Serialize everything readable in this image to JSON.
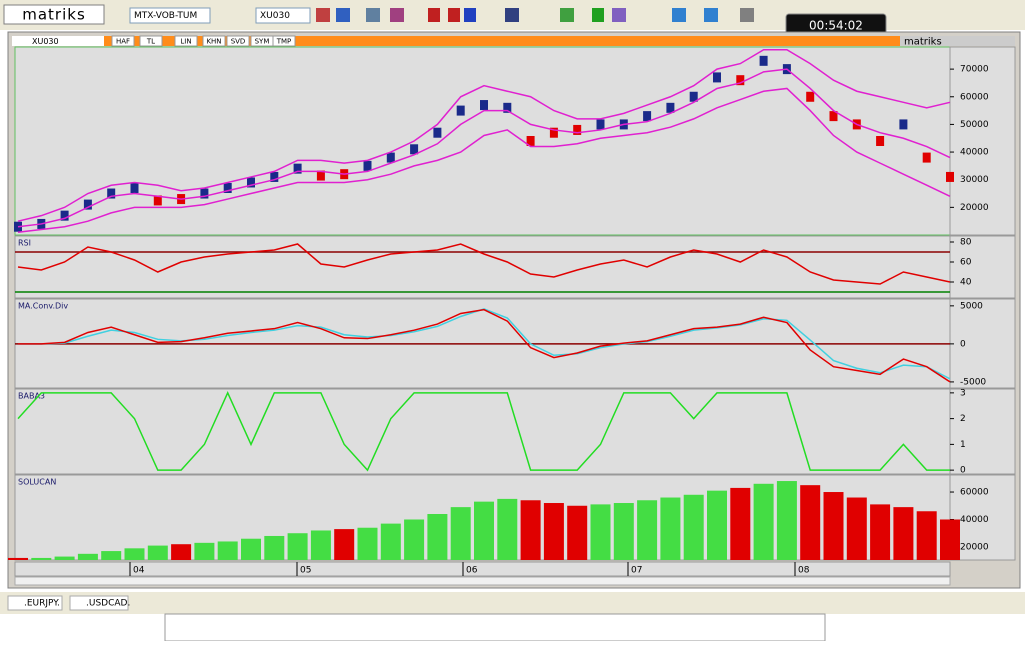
{
  "toolbar": {
    "logo": "matriks",
    "symbol_list": "MTX-VOB-TUM",
    "symbol": "XU030",
    "clock": "00:54:02"
  },
  "window": {
    "tab": "XU030",
    "buttons": [
      "HAF",
      "TL",
      "LIN",
      "KHN",
      "SVD",
      "SYM",
      "TMP"
    ],
    "brand": "matriks"
  },
  "x_axis": {
    "labels": [
      "04",
      "05",
      "06",
      "07",
      "08"
    ]
  },
  "chart_data": [
    {
      "type": "price",
      "ylim": [
        10000,
        78000
      ],
      "yticks": [
        70000,
        60000,
        50000,
        40000,
        30000,
        20000
      ],
      "series": [
        {
          "color": "#1a2a8a",
          "values": [
            13000,
            14000,
            17000,
            21000,
            25000,
            27000,
            22500,
            23000,
            25000,
            27000,
            29000,
            31000,
            34000,
            31500,
            32000,
            35000,
            38000,
            41000,
            47000,
            55000,
            57000,
            56000,
            44000,
            47000,
            48000,
            50000,
            50000,
            53000,
            56000,
            60000,
            67000,
            66000,
            73000,
            70000,
            60000,
            53000,
            50000,
            44000,
            50000,
            38000,
            31000
          ],
          "bar_colors": [
            "#1a2a8a",
            "#1a2a8a",
            "#1a2a8a",
            "#1a2a8a",
            "#1a2a8a",
            "#1a2a8a",
            "#e00000",
            "#e00000",
            "#1a2a8a",
            "#1a2a8a",
            "#1a2a8a",
            "#1a2a8a",
            "#1a2a8a",
            "#e00000",
            "#e00000",
            "#1a2a8a",
            "#1a2a8a",
            "#1a2a8a",
            "#1a2a8a",
            "#1a2a8a",
            "#1a2a8a",
            "#1a2a8a",
            "#e00000",
            "#e00000",
            "#e00000",
            "#1a2a8a",
            "#1a2a8a",
            "#1a2a8a",
            "#1a2a8a",
            "#1a2a8a",
            "#1a2a8a",
            "#e00000",
            "#1a2a8a",
            "#1a2a8a",
            "#e00000",
            "#e00000",
            "#e00000",
            "#e00000",
            "#1a2a8a",
            "#e00000",
            "#e00000"
          ]
        },
        {
          "color": "#e020d0",
          "values": [
            15000,
            17000,
            20000,
            25000,
            28000,
            29000,
            28000,
            26000,
            27000,
            29000,
            31000,
            33000,
            37000,
            37000,
            36000,
            37000,
            40000,
            44000,
            50000,
            60000,
            64000,
            62000,
            60000,
            55000,
            52000,
            52000,
            54000,
            57000,
            60000,
            64000,
            70000,
            72000,
            77000,
            77000,
            72000,
            66000,
            62000,
            60000,
            58000,
            56000,
            58000
          ]
        },
        {
          "color": "#e020d0",
          "values": [
            13000,
            14000,
            16000,
            20000,
            24000,
            25000,
            24000,
            23000,
            24000,
            26000,
            28000,
            30000,
            33000,
            33000,
            32000,
            33000,
            36000,
            39000,
            43000,
            50000,
            55000,
            55000,
            50000,
            48000,
            47000,
            48000,
            50000,
            51000,
            54000,
            58000,
            63000,
            65000,
            69000,
            70000,
            63000,
            55000,
            50000,
            47000,
            45000,
            42000,
            38000
          ]
        },
        {
          "color": "#e020d0",
          "values": [
            11000,
            12000,
            13000,
            15000,
            18000,
            20000,
            20000,
            20000,
            21000,
            23000,
            25000,
            27000,
            29000,
            29000,
            29000,
            30000,
            32000,
            35000,
            37000,
            40000,
            46000,
            48000,
            42000,
            42000,
            43000,
            45000,
            46000,
            47000,
            49000,
            52000,
            56000,
            59000,
            62000,
            63000,
            55000,
            46000,
            40000,
            36000,
            32000,
            28000,
            24000
          ]
        }
      ]
    },
    {
      "type": "line",
      "title": "RSI",
      "ylim": [
        24,
        86
      ],
      "yticks": [
        80,
        60,
        40
      ],
      "levels": [
        {
          "value": 70,
          "color": "#8b0000"
        },
        {
          "value": 30,
          "color": "#008000"
        }
      ],
      "series": [
        {
          "color": "#e00000",
          "values": [
            55,
            52,
            60,
            75,
            70,
            62,
            50,
            60,
            65,
            68,
            70,
            72,
            78,
            58,
            55,
            62,
            68,
            70,
            72,
            78,
            68,
            60,
            48,
            45,
            52,
            58,
            62,
            55,
            65,
            72,
            68,
            60,
            72,
            65,
            50,
            42,
            40,
            38,
            50,
            45,
            40
          ]
        }
      ]
    },
    {
      "type": "line",
      "title": "MA.Conv.Div",
      "ylim": [
        -5800,
        5900
      ],
      "yticks": [
        5000,
        0,
        -5000
      ],
      "levels": [
        {
          "value": 0,
          "color": "#8b0000"
        }
      ],
      "series": [
        {
          "color": "#40d0e0",
          "values": [
            0,
            0,
            100,
            1000,
            1800,
            1500,
            600,
            400,
            600,
            1100,
            1500,
            1800,
            2400,
            2200,
            1200,
            900,
            1100,
            1600,
            2300,
            3600,
            4600,
            3400,
            0,
            -1500,
            -1300,
            -500,
            0,
            300,
            1000,
            1800,
            2100,
            2500,
            3300,
            3100,
            500,
            -2200,
            -3200,
            -3800,
            -2800,
            -3000,
            -4600
          ]
        },
        {
          "color": "#e00000",
          "values": [
            0,
            0,
            200,
            1500,
            2200,
            1200,
            200,
            300,
            800,
            1400,
            1700,
            2000,
            2800,
            2000,
            800,
            700,
            1200,
            1800,
            2600,
            4000,
            4500,
            3000,
            -500,
            -1800,
            -1200,
            -300,
            100,
            400,
            1200,
            2000,
            2200,
            2600,
            3500,
            2800,
            -800,
            -3000,
            -3500,
            -4000,
            -2000,
            -3000,
            -5000
          ]
        }
      ]
    },
    {
      "type": "line",
      "title": "BABA3",
      "ylim": [
        -0.15,
        3.15
      ],
      "yticks": [
        3,
        2,
        1,
        0
      ],
      "series": [
        {
          "color": "#22dd22",
          "values": [
            2,
            3,
            3,
            3,
            3,
            2,
            0,
            0,
            1,
            3,
            1,
            3,
            3,
            3,
            1,
            0,
            2,
            3,
            3,
            3,
            3,
            3,
            0,
            0,
            0,
            1,
            3,
            3,
            3,
            2,
            3,
            3,
            3,
            3,
            0,
            0,
            0,
            0,
            1,
            0,
            0
          ]
        }
      ]
    },
    {
      "type": "bar",
      "title": "SOLUCAN",
      "ylim": [
        10500,
        72400
      ],
      "yticks": [
        60000,
        40000,
        20000
      ],
      "series": [
        {
          "values": [
            12000,
            12000,
            13000,
            15000,
            17000,
            19000,
            21000,
            22000,
            23000,
            24000,
            26000,
            28000,
            30000,
            32000,
            33000,
            34000,
            37000,
            40000,
            44000,
            49000,
            53000,
            55000,
            54000,
            52000,
            50000,
            51000,
            52000,
            54000,
            56000,
            58000,
            61000,
            63000,
            66000,
            68000,
            65000,
            60000,
            56000,
            51000,
            49000,
            46000,
            40000
          ],
          "bar_colors": [
            "#e00000",
            "#44dd44",
            "#44dd44",
            "#44dd44",
            "#44dd44",
            "#44dd44",
            "#44dd44",
            "#e00000",
            "#44dd44",
            "#44dd44",
            "#44dd44",
            "#44dd44",
            "#44dd44",
            "#44dd44",
            "#e00000",
            "#44dd44",
            "#44dd44",
            "#44dd44",
            "#44dd44",
            "#44dd44",
            "#44dd44",
            "#44dd44",
            "#e00000",
            "#e00000",
            "#e00000",
            "#44dd44",
            "#44dd44",
            "#44dd44",
            "#44dd44",
            "#44dd44",
            "#44dd44",
            "#e00000",
            "#44dd44",
            "#44dd44",
            "#e00000",
            "#e00000",
            "#e00000",
            "#e00000",
            "#e00000",
            "#e00000",
            "#e00000"
          ]
        }
      ]
    }
  ],
  "taskbar": {
    "tabs": [
      ".EURJPY.",
      ".USDCAD."
    ]
  }
}
